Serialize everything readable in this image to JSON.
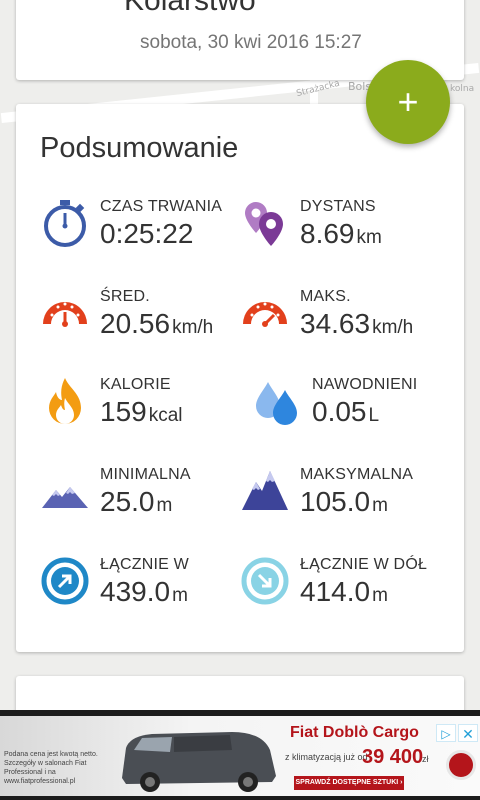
{
  "activity": {
    "name": "Kolarstwo",
    "date": "sobota, 30 kwi 2016 15:27"
  },
  "map": {
    "street_labels": [
      "Strażacka",
      "Bols",
      "kolna"
    ]
  },
  "fab": {
    "label": "+"
  },
  "summary": {
    "title": "Podsumowanie",
    "stats": [
      {
        "id": "duration",
        "label": "CZAS TRWANIA",
        "value": "0:25:22",
        "unit": "",
        "icon": "stopwatch-icon"
      },
      {
        "id": "distance",
        "label": "DYSTANS",
        "value": "8.69",
        "unit": "km",
        "icon": "map-pins-icon"
      },
      {
        "id": "avg_speed",
        "label": "ŚRED.",
        "value": "20.56",
        "unit": "km/h",
        "icon": "speedometer-icon"
      },
      {
        "id": "max_speed",
        "label": "MAKS.",
        "value": "34.63",
        "unit": "km/h",
        "icon": "speedometer-max-icon"
      },
      {
        "id": "calories",
        "label": "KALORIE",
        "value": "159",
        "unit": "kcal",
        "icon": "flame-icon"
      },
      {
        "id": "hydration",
        "label": "NAWODNIENI",
        "value": "0.05",
        "unit": "L",
        "icon": "water-drops-icon"
      },
      {
        "id": "min_alt",
        "label": "MINIMALNA",
        "value": "25.0",
        "unit": "m",
        "icon": "mountain-low-icon"
      },
      {
        "id": "max_alt",
        "label": "MAKSYMALNA",
        "value": "105.0",
        "unit": "m",
        "icon": "mountain-high-icon"
      },
      {
        "id": "ascent",
        "label": "ŁĄCZNIE W",
        "value": "439.0",
        "unit": "m",
        "icon": "arrow-up-circle-icon"
      },
      {
        "id": "descent",
        "label": "ŁĄCZNIE W DÓŁ",
        "value": "414.0",
        "unit": "m",
        "icon": "arrow-down-circle-icon"
      }
    ]
  },
  "ad": {
    "fine_print": "Podana cena jest kwotą netto. Szczegóły w salonach Fiat Professional i na www.fiatprofessional.pl",
    "title": "Fiat Doblò Cargo",
    "price_label": "z klimatyzacją już od",
    "price": "39 400",
    "price_unit": "zł",
    "cta": "SPRAWDŹ DOSTĘPNE SZTUKI ›",
    "choices_icon": "ad-choices-icon",
    "close_icon": "close-icon"
  },
  "colors": {
    "accent": "#8bab1c",
    "blue": "#3c5ba8",
    "purple": "#8e44ad",
    "orange_red": "#e2401c",
    "orange": "#f39c12",
    "water": "#2e86de",
    "mountain": "#5a63b3",
    "teal": "#1f88c7",
    "light_teal": "#89d3e5"
  }
}
